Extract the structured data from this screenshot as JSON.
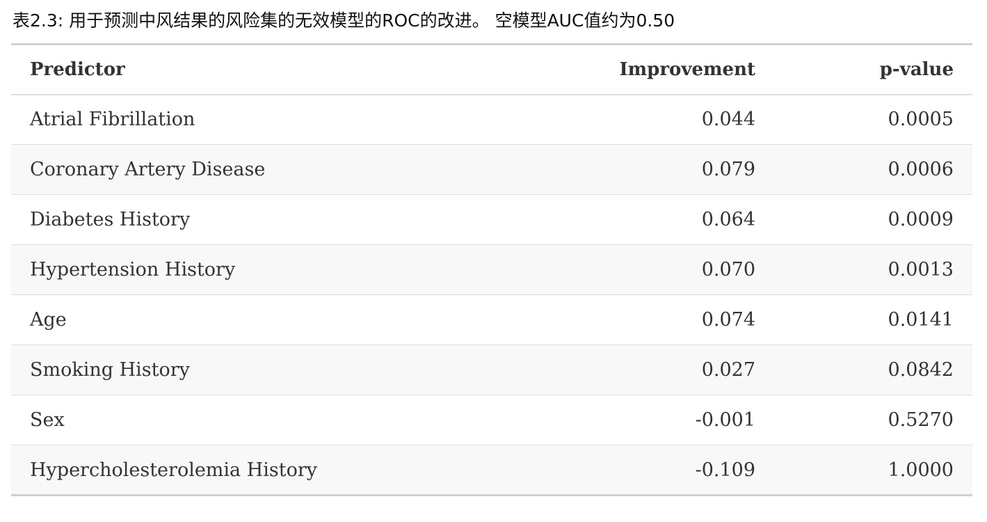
{
  "caption": "表2.3: 用于预测中风结果的风险集的无效模型的ROC的改进。 空模型AUC值约为0.50",
  "table": {
    "headers": [
      "Predictor",
      "Improvement",
      "p-value"
    ],
    "rows": [
      [
        "Atrial Fibrillation",
        "0.044",
        "0.0005"
      ],
      [
        "Coronary Artery Disease",
        "0.079",
        "0.0006"
      ],
      [
        "Diabetes History",
        "0.064",
        "0.0009"
      ],
      [
        "Hypertension History",
        "0.070",
        "0.0013"
      ],
      [
        "Age",
        "0.074",
        "0.0141"
      ],
      [
        "Smoking History",
        "0.027",
        "0.0842"
      ],
      [
        "Sex",
        "-0.001",
        "0.5270"
      ],
      [
        "Hypercholesterolemia History",
        "-0.109",
        "1.0000"
      ]
    ]
  }
}
